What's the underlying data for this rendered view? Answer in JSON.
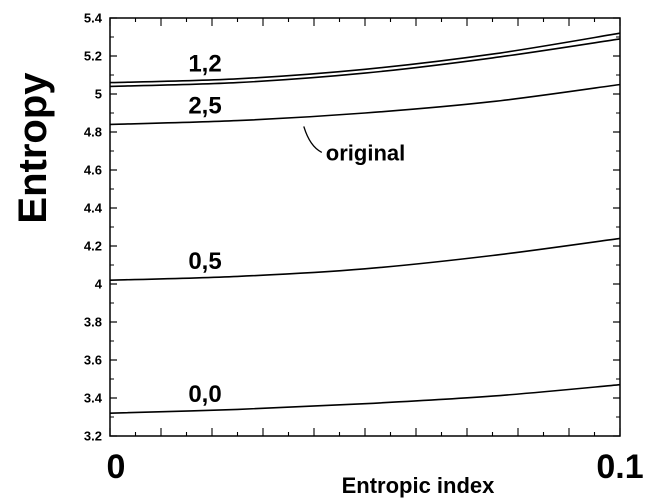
{
  "chart_data": {
    "type": "line",
    "title": "",
    "xlabel": "Entropic index",
    "ylabel": "Entropy",
    "xlim": [
      0,
      0.1
    ],
    "ylim": [
      3.2,
      5.4
    ],
    "x_tick_labels": [
      "0",
      "0.1"
    ],
    "y_ticks": [
      3.2,
      3.4,
      3.6,
      3.8,
      4,
      4.2,
      4.4,
      4.6,
      4.8,
      5,
      5.2,
      5.4
    ],
    "y_tick_labels": [
      "3.2",
      "3.4",
      "3.6",
      "3.8",
      "4",
      "4.2",
      "4.4",
      "4.6",
      "4.8",
      "5",
      "5.2",
      "5.4"
    ],
    "grid": false,
    "x": [
      0,
      0.025,
      0.05,
      0.075,
      0.1
    ],
    "series": [
      {
        "name": "1,2",
        "values": [
          5.06,
          5.08,
          5.13,
          5.21,
          5.32
        ]
      },
      {
        "name": "",
        "values": [
          5.04,
          5.06,
          5.11,
          5.19,
          5.29
        ]
      },
      {
        "name": "2,5",
        "values": [
          4.84,
          4.86,
          4.9,
          4.96,
          5.05
        ]
      },
      {
        "name": "0,5",
        "values": [
          4.02,
          4.04,
          4.08,
          4.15,
          4.24
        ]
      },
      {
        "name": "0,0",
        "values": [
          3.32,
          3.34,
          3.37,
          3.41,
          3.47
        ]
      }
    ],
    "annotations": [
      {
        "text": "original",
        "x": 0.038,
        "y": 4.84
      }
    ]
  }
}
